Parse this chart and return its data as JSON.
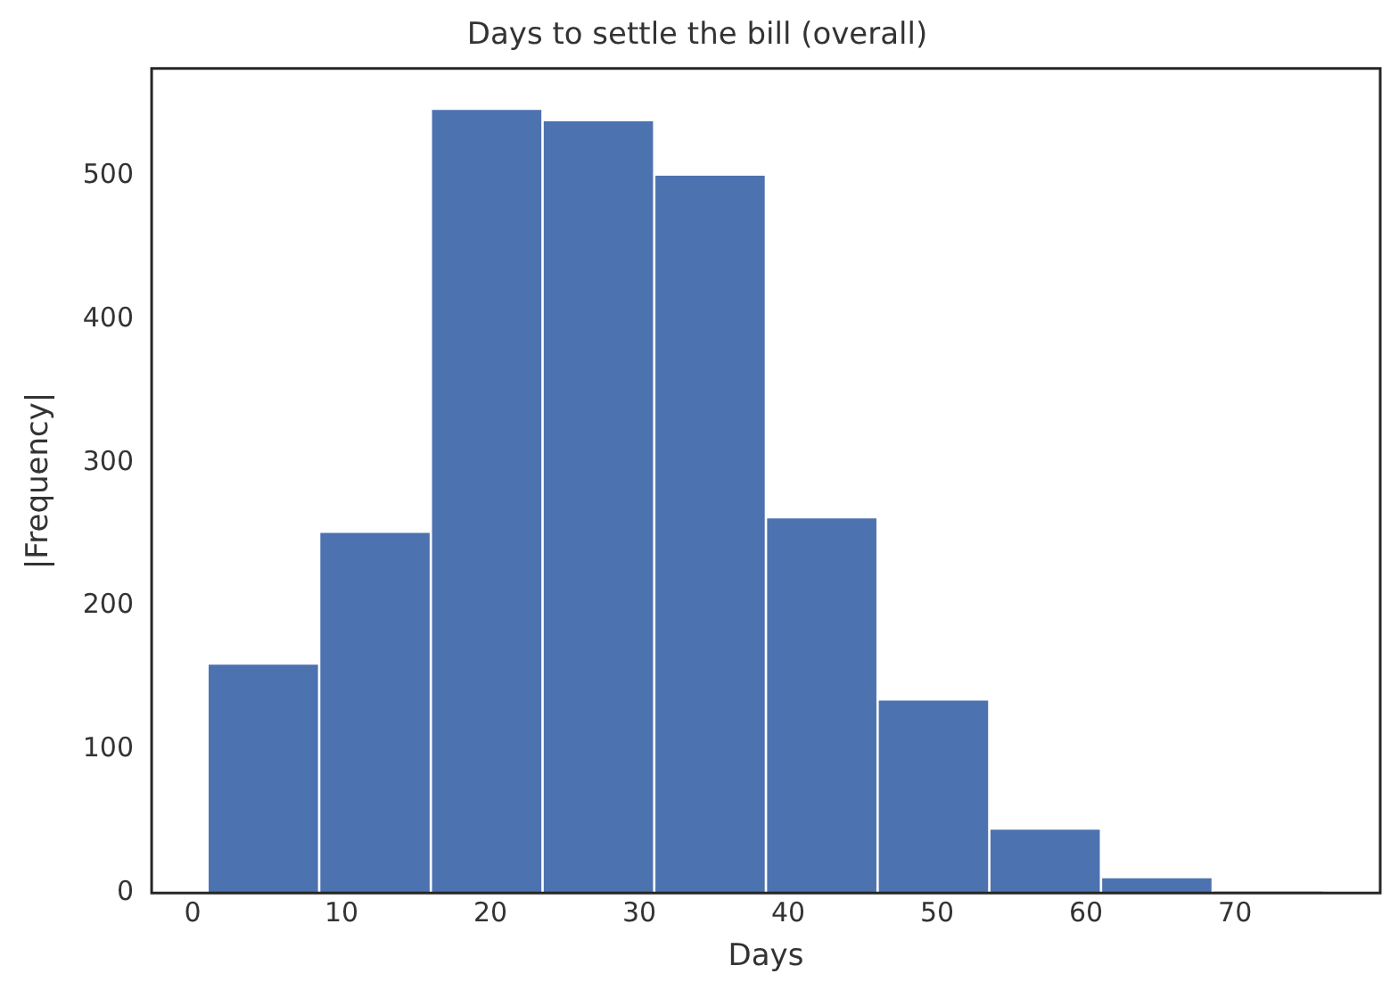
{
  "chart_data": {
    "type": "histogram",
    "title": "Days to settle the bill (overall)",
    "xlabel": "Days",
    "ylabel": "|Frequency|",
    "bins": [
      1,
      8.5,
      16,
      23.5,
      31,
      38.5,
      46,
      53.5,
      61,
      68.5,
      76
    ],
    "values": [
      160,
      252,
      547,
      539,
      501,
      262,
      135,
      45,
      11,
      1
    ],
    "color": "#4c72b0",
    "xlim": [
      -2.75,
      79.75
    ],
    "xticks": [
      0,
      10,
      20,
      30,
      40,
      50,
      60,
      70
    ],
    "ylim": [
      0,
      575
    ],
    "yticks": [
      0,
      100,
      200,
      300,
      400,
      500
    ],
    "grid": false,
    "legend": false
  }
}
